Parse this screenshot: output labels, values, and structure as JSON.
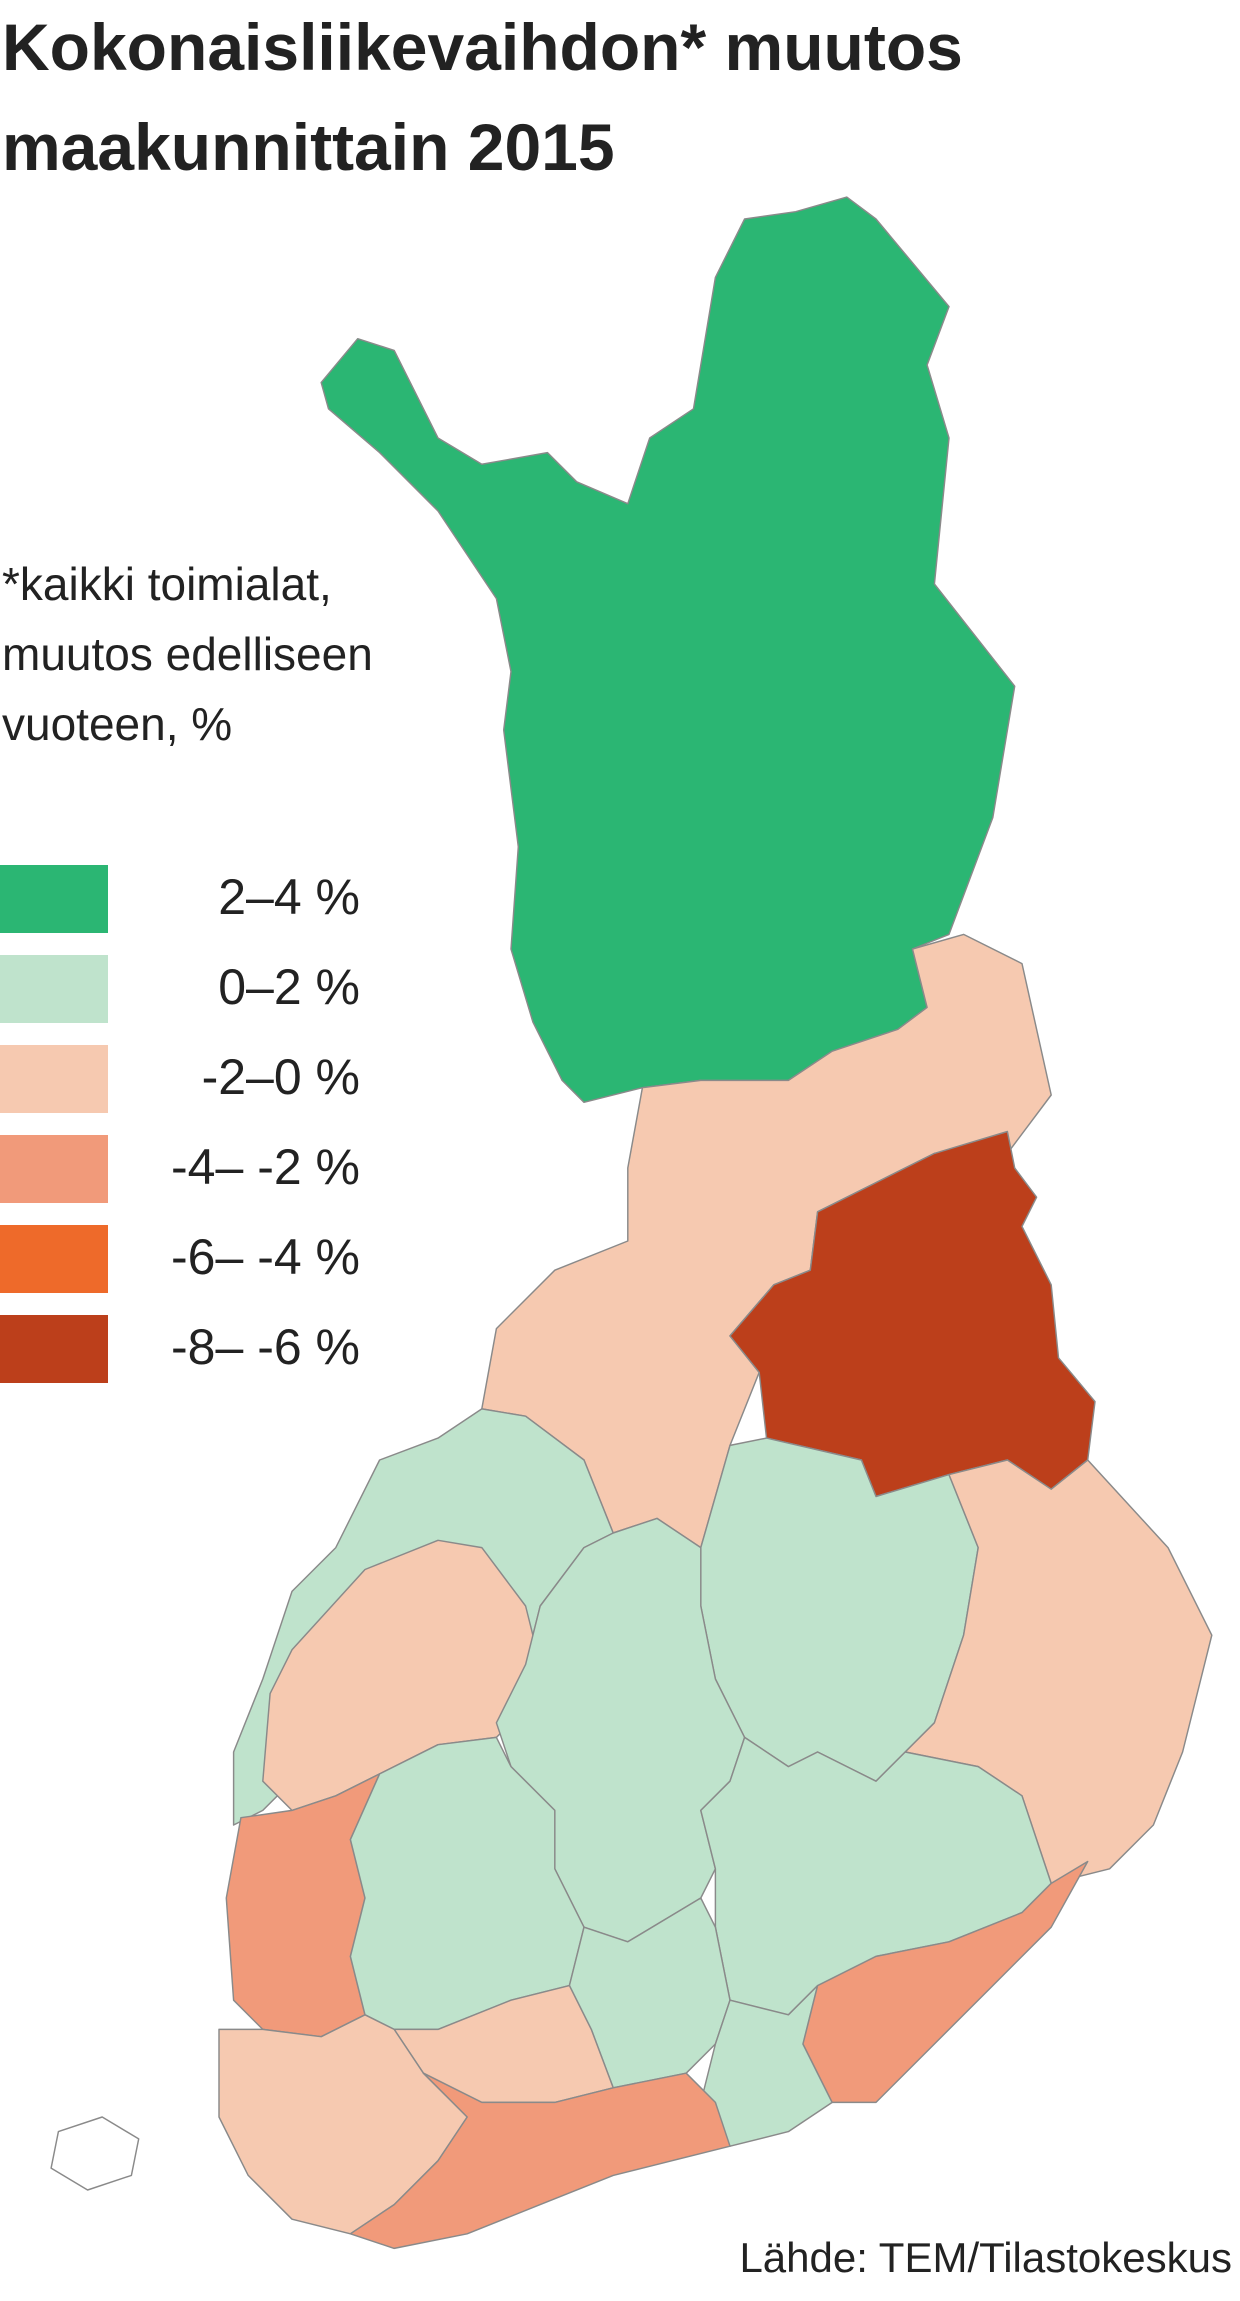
{
  "header": {
    "title_lines": [
      "Kokonaisliikevaihdon* muutos",
      "maakunnittain 2015"
    ]
  },
  "note_lines": [
    "*kaikki toimialat,",
    "muutos edelliseen",
    "vuoteen, %"
  ],
  "legend": {
    "items": [
      {
        "label": "2–4 %",
        "color": "#2bb673"
      },
      {
        "label": "0–2 %",
        "color": "#bfe3cc"
      },
      {
        "label": "-2–0 %",
        "color": "#f6c9b0"
      },
      {
        "label": "-4– -2 %",
        "color": "#f19a7a"
      },
      {
        "label": "-6– -4 %",
        "color": "#ee6a2a"
      },
      {
        "label": "-8– -6 %",
        "color": "#bc3f1b"
      }
    ]
  },
  "source": "Lähde: TEM/Tilastokeskus"
}
